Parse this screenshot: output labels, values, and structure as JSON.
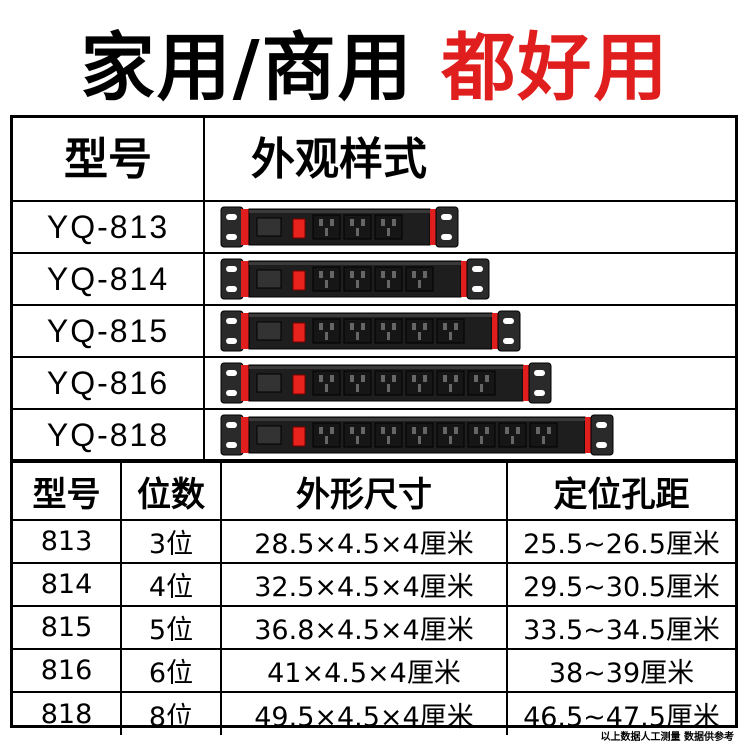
{
  "headline": {
    "part1": "家用/商用",
    "part2": "都好用"
  },
  "appearance_table": {
    "header_model": "型号",
    "header_appearance": "外观样式",
    "rows": [
      {
        "model": "YQ-813",
        "outlets": 3
      },
      {
        "model": "YQ-814",
        "outlets": 4
      },
      {
        "model": "YQ-815",
        "outlets": 5
      },
      {
        "model": "YQ-816",
        "outlets": 6
      },
      {
        "model": "YQ-818",
        "outlets": 8
      }
    ]
  },
  "spec_table": {
    "headers": [
      "型号",
      "位数",
      "外形尺寸",
      "定位孔距"
    ],
    "rows": [
      [
        "813",
        "3位",
        "28.5×4.5×4厘米",
        "25.5~26.5厘米"
      ],
      [
        "814",
        "4位",
        "32.5×4.5×4厘米",
        "29.5~30.5厘米"
      ],
      [
        "815",
        "5位",
        "36.8×4.5×4厘米",
        "33.5~34.5厘米"
      ],
      [
        "816",
        "6位",
        "41×4.5×4厘米",
        "38~39厘米"
      ],
      [
        "818",
        "8位",
        "49.5×4.5×4厘米",
        "46.5~47.5厘米"
      ]
    ]
  },
  "footnote": "以上数据人工测量 数据供参考",
  "colors": {
    "accent_red": "#e01e1e",
    "strip_body": "#1e1e1e",
    "switch_red": "#e8231d"
  }
}
